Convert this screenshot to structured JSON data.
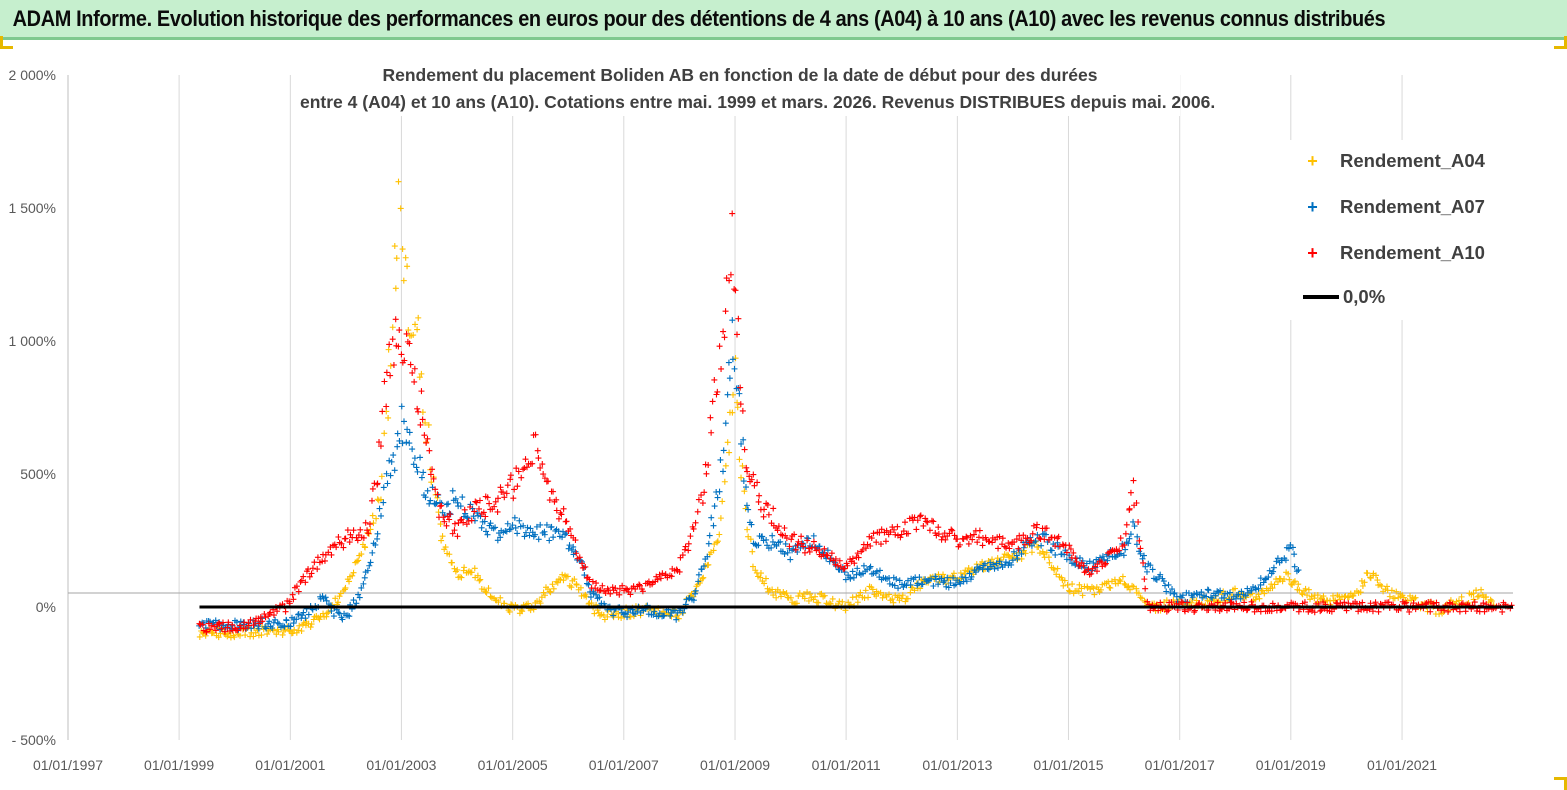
{
  "banner": {
    "title": "ADAM Informe. Evolution historique des performances en euros pour des détentions de 4 ans (A04) à 10 ans (A10) avec les revenus connus distribués"
  },
  "colors": {
    "banner_bg": "#c6efce",
    "banner_border": "#7fc98f",
    "corner_marks": "#e6b800",
    "A04": "#ffc000",
    "A07": "#0070c0",
    "A10": "#ff0000",
    "zero_line": "#000000"
  },
  "chart_data": {
    "type": "scatter",
    "title_lines": [
      "Rendement du placement Boliden AB en fonction de la date de début pour des durées",
      "entre 4 (A04) et 10 ans (A10).  Cotations entre mai. 1999 et mars. 2026. Revenus DISTRIBUES depuis mai. 2006."
    ],
    "x_axis": {
      "type": "date",
      "min": "1997-01-01",
      "max": "2022-12-31",
      "tick_labels": [
        "01/01/1997",
        "01/01/1999",
        "01/01/2001",
        "01/01/2003",
        "01/01/2005",
        "01/01/2007",
        "01/01/2009",
        "01/01/2011",
        "01/01/2013",
        "01/01/2015",
        "01/01/2017",
        "01/01/2019",
        "01/01/2021"
      ],
      "gridlines": true
    },
    "y_axis": {
      "min": -500,
      "max": 2000,
      "unit": "%",
      "tick_values": [
        -500,
        0,
        500,
        1000,
        1500,
        2000
      ],
      "tick_labels": [
        "- 500%",
        "0%",
        "500%",
        "1 000%",
        "1 500%",
        "2 000%"
      ],
      "gridlines": false
    },
    "legend": {
      "position": "right",
      "items": [
        {
          "label": "Rendement_A04",
          "marker": "+",
          "color": "#ffc000"
        },
        {
          "label": "Rendement_A07",
          "marker": "+",
          "color": "#0070c0"
        },
        {
          "label": "Rendement_A10",
          "marker": "+",
          "color": "#ff0000"
        },
        {
          "label": "0,0%",
          "marker": "line",
          "color": "#000000"
        }
      ]
    },
    "reference_line": {
      "name": "0,0%",
      "y": 0,
      "x_start": "1999-05-15",
      "x_end": "2022-12-31"
    },
    "series": [
      {
        "name": "Rendement_A04",
        "color": "#ffc000",
        "marker": "+",
        "points": [
          [
            "1999-05-15",
            -100
          ],
          [
            "1999-09-01",
            -98
          ],
          [
            "2000-01-01",
            -95
          ],
          [
            "2000-06-01",
            -93
          ],
          [
            "2000-12-01",
            -88
          ],
          [
            "2001-03-01",
            -80
          ],
          [
            "2001-06-01",
            -55
          ],
          [
            "2001-09-01",
            -20
          ],
          [
            "2001-12-01",
            50
          ],
          [
            "2002-03-01",
            150
          ],
          [
            "2002-06-01",
            280
          ],
          [
            "2002-08-15",
            450
          ],
          [
            "2002-10-01",
            800
          ],
          [
            "2002-11-15",
            1250
          ],
          [
            "2002-12-15",
            1450
          ],
          [
            "2003-01-15",
            1200
          ],
          [
            "2003-03-01",
            1100
          ],
          [
            "2003-05-01",
            950
          ],
          [
            "2003-06-15",
            700
          ],
          [
            "2003-08-01",
            450
          ],
          [
            "2003-10-01",
            250
          ],
          [
            "2004-01-01",
            120
          ],
          [
            "2004-04-01",
            150
          ],
          [
            "2004-06-15",
            80
          ],
          [
            "2004-10-01",
            20
          ],
          [
            "2005-01-01",
            -10
          ],
          [
            "2005-06-01",
            0
          ],
          [
            "2005-09-01",
            70
          ],
          [
            "2005-12-01",
            110
          ],
          [
            "2006-03-01",
            80
          ],
          [
            "2006-06-01",
            0
          ],
          [
            "2006-09-01",
            -30
          ],
          [
            "2007-01-01",
            -20
          ],
          [
            "2007-06-01",
            -10
          ],
          [
            "2008-01-01",
            -30
          ],
          [
            "2008-04-01",
            50
          ],
          [
            "2008-07-01",
            150
          ],
          [
            "2008-10-01",
            300
          ],
          [
            "2008-12-01",
            700
          ],
          [
            "2009-01-01",
            850
          ],
          [
            "2009-03-01",
            400
          ],
          [
            "2009-05-01",
            150
          ],
          [
            "2009-09-01",
            60
          ],
          [
            "2010-01-01",
            30
          ],
          [
            "2010-06-01",
            40
          ],
          [
            "2011-01-01",
            0
          ],
          [
            "2011-06-01",
            60
          ],
          [
            "2012-01-01",
            20
          ],
          [
            "2012-06-01",
            100
          ],
          [
            "2013-01-01",
            110
          ],
          [
            "2013-06-01",
            150
          ],
          [
            "2014-01-01",
            190
          ],
          [
            "2014-06-01",
            230
          ],
          [
            "2014-09-01",
            170
          ],
          [
            "2015-01-01",
            70
          ],
          [
            "2015-06-01",
            60
          ],
          [
            "2016-01-01",
            100
          ],
          [
            "2016-06-01",
            0
          ],
          [
            "2017-01-01",
            10
          ],
          [
            "2017-06-01",
            20
          ],
          [
            "2018-01-01",
            50
          ],
          [
            "2018-06-01",
            40
          ],
          [
            "2018-12-01",
            120
          ],
          [
            "2019-03-01",
            60
          ],
          [
            "2019-09-01",
            20
          ],
          [
            "2020-03-01",
            40
          ],
          [
            "2020-06-01",
            130
          ],
          [
            "2020-10-01",
            60
          ],
          [
            "2021-03-01",
            20
          ],
          [
            "2021-09-01",
            -10
          ],
          [
            "2022-03-01",
            30
          ],
          [
            "2022-06-01",
            60
          ],
          [
            "2022-09-01",
            -10
          ]
        ]
      },
      {
        "name": "Rendement_A07",
        "color": "#0070c0",
        "marker": "+",
        "points": [
          [
            "1999-05-15",
            -60
          ],
          [
            "2000-01-01",
            -70
          ],
          [
            "2000-06-01",
            -62
          ],
          [
            "2000-12-01",
            -60
          ],
          [
            "2001-03-01",
            -40
          ],
          [
            "2001-06-01",
            0
          ],
          [
            "2001-08-01",
            40
          ],
          [
            "2001-10-01",
            -20
          ],
          [
            "2002-01-01",
            -30
          ],
          [
            "2002-04-01",
            40
          ],
          [
            "2002-06-01",
            150
          ],
          [
            "2002-08-01",
            300
          ],
          [
            "2002-10-01",
            500
          ],
          [
            "2002-12-01",
            600
          ],
          [
            "2003-01-01",
            680
          ],
          [
            "2003-03-01",
            620
          ],
          [
            "2003-06-01",
            450
          ],
          [
            "2003-09-01",
            380
          ],
          [
            "2004-01-01",
            400
          ],
          [
            "2004-06-01",
            320
          ],
          [
            "2004-10-01",
            280
          ],
          [
            "2005-01-01",
            320
          ],
          [
            "2005-06-01",
            280
          ],
          [
            "2005-12-01",
            270
          ],
          [
            "2006-03-01",
            200
          ],
          [
            "2006-06-01",
            50
          ],
          [
            "2006-09-01",
            -10
          ],
          [
            "2007-01-01",
            -20
          ],
          [
            "2007-06-01",
            -10
          ],
          [
            "2008-01-01",
            -30
          ],
          [
            "2008-04-01",
            40
          ],
          [
            "2008-07-01",
            200
          ],
          [
            "2008-10-01",
            500
          ],
          [
            "2008-12-01",
            950
          ],
          [
            "2009-01-01",
            1000
          ],
          [
            "2009-03-01",
            500
          ],
          [
            "2009-05-01",
            250
          ],
          [
            "2009-09-01",
            250
          ],
          [
            "2010-01-01",
            200
          ],
          [
            "2010-06-01",
            250
          ],
          [
            "2011-01-01",
            120
          ],
          [
            "2011-06-01",
            140
          ],
          [
            "2012-01-01",
            80
          ],
          [
            "2012-06-01",
            100
          ],
          [
            "2013-01-01",
            90
          ],
          [
            "2013-06-01",
            140
          ],
          [
            "2014-01-01",
            180
          ],
          [
            "2014-06-01",
            270
          ],
          [
            "2014-12-01",
            200
          ],
          [
            "2015-06-01",
            150
          ],
          [
            "2016-01-01",
            220
          ],
          [
            "2016-03-01",
            300
          ],
          [
            "2016-06-01",
            150
          ],
          [
            "2017-01-01",
            30
          ],
          [
            "2017-06-01",
            50
          ],
          [
            "2018-01-01",
            40
          ],
          [
            "2018-06-01",
            80
          ],
          [
            "2019-01-01",
            220
          ],
          [
            "2019-03-01",
            120
          ]
        ]
      },
      {
        "name": "Rendement_A10",
        "color": "#ff0000",
        "marker": "+",
        "points": [
          [
            "1999-05-15",
            -80
          ],
          [
            "2000-01-01",
            -75
          ],
          [
            "2000-06-01",
            -50
          ],
          [
            "2000-12-01",
            0
          ],
          [
            "2001-06-01",
            150
          ],
          [
            "2001-12-01",
            250
          ],
          [
            "2002-06-01",
            300
          ],
          [
            "2002-08-01",
            500
          ],
          [
            "2002-10-01",
            900
          ],
          [
            "2002-12-01",
            1100
          ],
          [
            "2003-01-01",
            1000
          ],
          [
            "2003-03-01",
            900
          ],
          [
            "2003-06-01",
            700
          ],
          [
            "2003-09-01",
            350
          ],
          [
            "2004-01-01",
            300
          ],
          [
            "2004-06-01",
            380
          ],
          [
            "2004-10-01",
            400
          ],
          [
            "2005-01-01",
            450
          ],
          [
            "2005-06-01",
            600
          ],
          [
            "2005-09-01",
            450
          ],
          [
            "2006-01-01",
            300
          ],
          [
            "2006-06-01",
            80
          ],
          [
            "2007-01-01",
            60
          ],
          [
            "2007-06-01",
            80
          ],
          [
            "2008-01-01",
            150
          ],
          [
            "2008-06-01",
            400
          ],
          [
            "2008-10-01",
            1000
          ],
          [
            "2008-12-01",
            1400
          ],
          [
            "2009-01-01",
            1200
          ],
          [
            "2009-03-01",
            600
          ],
          [
            "2009-06-01",
            400
          ],
          [
            "2010-01-01",
            250
          ],
          [
            "2010-06-01",
            220
          ],
          [
            "2011-01-01",
            150
          ],
          [
            "2011-06-01",
            250
          ],
          [
            "2012-01-01",
            300
          ],
          [
            "2012-06-01",
            320
          ],
          [
            "2013-01-01",
            250
          ],
          [
            "2013-06-01",
            260
          ],
          [
            "2014-01-01",
            230
          ],
          [
            "2014-06-01",
            290
          ],
          [
            "2014-12-01",
            230
          ],
          [
            "2015-06-01",
            120
          ],
          [
            "2016-01-01",
            250
          ],
          [
            "2016-03-01",
            480
          ],
          [
            "2016-06-01",
            0
          ],
          [
            "2022-12-31",
            0
          ]
        ]
      }
    ]
  }
}
